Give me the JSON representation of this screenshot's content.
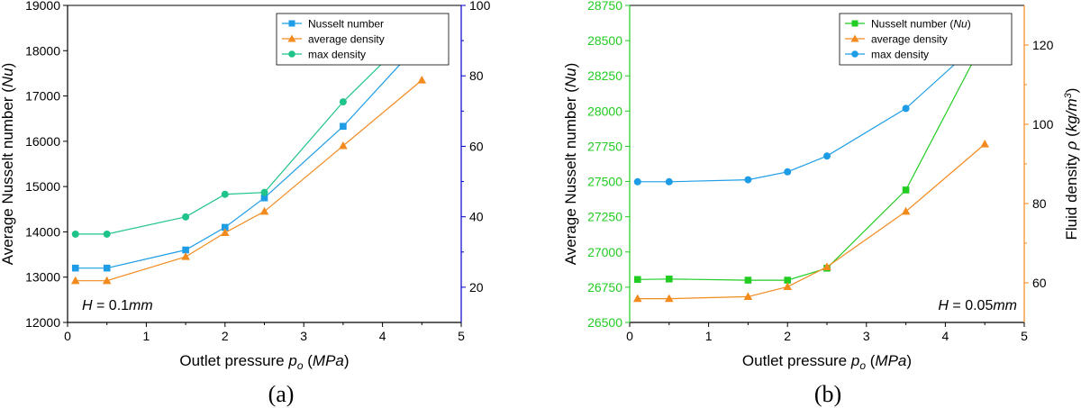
{
  "chart_data": [
    {
      "type": "line",
      "panel_label": "(a)",
      "annotation": {
        "var": "H",
        "eq": " = 0.1",
        "unit": "mm"
      },
      "xlabel": {
        "text": "Outlet pressure ",
        "var": "p",
        "sub": "o",
        "unit_open": " (",
        "unit": "MPa",
        "unit_close": ")"
      },
      "ylabel_left": {
        "text": "Average Nusselt number (",
        "var": "Nu",
        "close": ")"
      },
      "ylabel_right": {
        "text": "",
        "var": "",
        "mid": "",
        "unit": "",
        "sup": "",
        "close": ""
      },
      "xlim": [
        0,
        5
      ],
      "xticks": [
        0,
        1,
        2,
        3,
        4,
        5
      ],
      "ylim_left": [
        12000,
        19000
      ],
      "yticks_left": [
        12000,
        13000,
        14000,
        15000,
        16000,
        17000,
        18000,
        19000
      ],
      "ylim_right": [
        10,
        100
      ],
      "yticks_right": [
        20,
        40,
        60,
        80,
        100
      ],
      "colors": {
        "axis_left": "#000000",
        "axis_right": "#0000cc"
      },
      "legend": {
        "position": "top-right",
        "entries": [
          {
            "text": "Nusselt number",
            "italic": ""
          },
          {
            "text": "average density",
            "italic": ""
          },
          {
            "text": "max density",
            "italic": ""
          }
        ]
      },
      "series": [
        {
          "name": "Nusselt number",
          "axis": "left",
          "marker": "square",
          "color": "#1e9de6",
          "x": [
            0.1,
            0.5,
            1.5,
            2.0,
            2.5,
            3.5,
            4.5
          ],
          "y": [
            13200,
            13200,
            13600,
            14100,
            14750,
            16330,
            18220
          ]
        },
        {
          "name": "average density",
          "axis": "left",
          "marker": "triangle",
          "color": "#f28a1e",
          "x": [
            0.1,
            0.5,
            1.5,
            2.0,
            2.5,
            3.5,
            4.5
          ],
          "y": [
            12920,
            12920,
            13450,
            13980,
            14450,
            15900,
            17350
          ]
        },
        {
          "name": "max density",
          "axis": "left",
          "marker": "circle",
          "color": "#1fc48a",
          "x": [
            0.1,
            0.5,
            1.5,
            2.0,
            2.5,
            3.5,
            4.5
          ],
          "y": [
            13950,
            13950,
            14330,
            14830,
            14870,
            16870,
            18580
          ]
        }
      ]
    },
    {
      "type": "line",
      "panel_label": "(b)",
      "annotation": {
        "var": "H",
        "eq": " = 0.05",
        "unit": "mm"
      },
      "xlabel": {
        "text": "Outlet pressure ",
        "var": "p",
        "sub": "o",
        "unit_open": " (",
        "unit": "MPa",
        "unit_close": ")"
      },
      "ylabel_left": {
        "text": "Average Nusselt number (",
        "var": "Nu",
        "close": ")"
      },
      "ylabel_right": {
        "text": "Fluid density ",
        "var": "ρ",
        "mid": " (",
        "unit": "kg/m",
        "sup": "3",
        "close": ")"
      },
      "xlim": [
        0,
        5
      ],
      "xticks": [
        0,
        1,
        2,
        3,
        4,
        5
      ],
      "ylim_left": [
        26500,
        28750
      ],
      "yticks_left": [
        26500,
        26750,
        27000,
        27250,
        27500,
        27750,
        28000,
        28250,
        28500,
        28750
      ],
      "ylim_right": [
        50,
        130
      ],
      "yticks_right": [
        60,
        80,
        100,
        120
      ],
      "colors": {
        "axis_left": "#22cc22",
        "axis_right": "#f28a1e"
      },
      "legend": {
        "position": "top-right",
        "entries": [
          {
            "text": "Nusselt number (",
            "italic": "Nu",
            "close": ")"
          },
          {
            "text": "average density",
            "italic": ""
          },
          {
            "text": "max density",
            "italic": ""
          }
        ]
      },
      "series": [
        {
          "name": "Nusselt number (Nu)",
          "axis": "left",
          "marker": "square",
          "color": "#22cc22",
          "x": [
            0.1,
            0.5,
            1.5,
            2.0,
            2.5,
            3.5,
            4.5
          ],
          "y": [
            26805,
            26808,
            26800,
            26800,
            26885,
            27440,
            28510
          ]
        },
        {
          "name": "average density",
          "axis": "right",
          "marker": "triangle",
          "color": "#f28a1e",
          "x": [
            0.1,
            0.5,
            1.5,
            2.0,
            2.5,
            3.5,
            4.5
          ],
          "y": [
            56,
            56,
            56.5,
            59,
            64,
            78,
            95
          ]
        },
        {
          "name": "max density",
          "axis": "right",
          "marker": "circle",
          "color": "#1e9de6",
          "x": [
            0.1,
            0.5,
            1.5,
            2.0,
            2.5,
            3.5,
            4.5
          ],
          "y": [
            85.5,
            85.5,
            86,
            88,
            92,
            104,
            122
          ]
        }
      ]
    }
  ]
}
